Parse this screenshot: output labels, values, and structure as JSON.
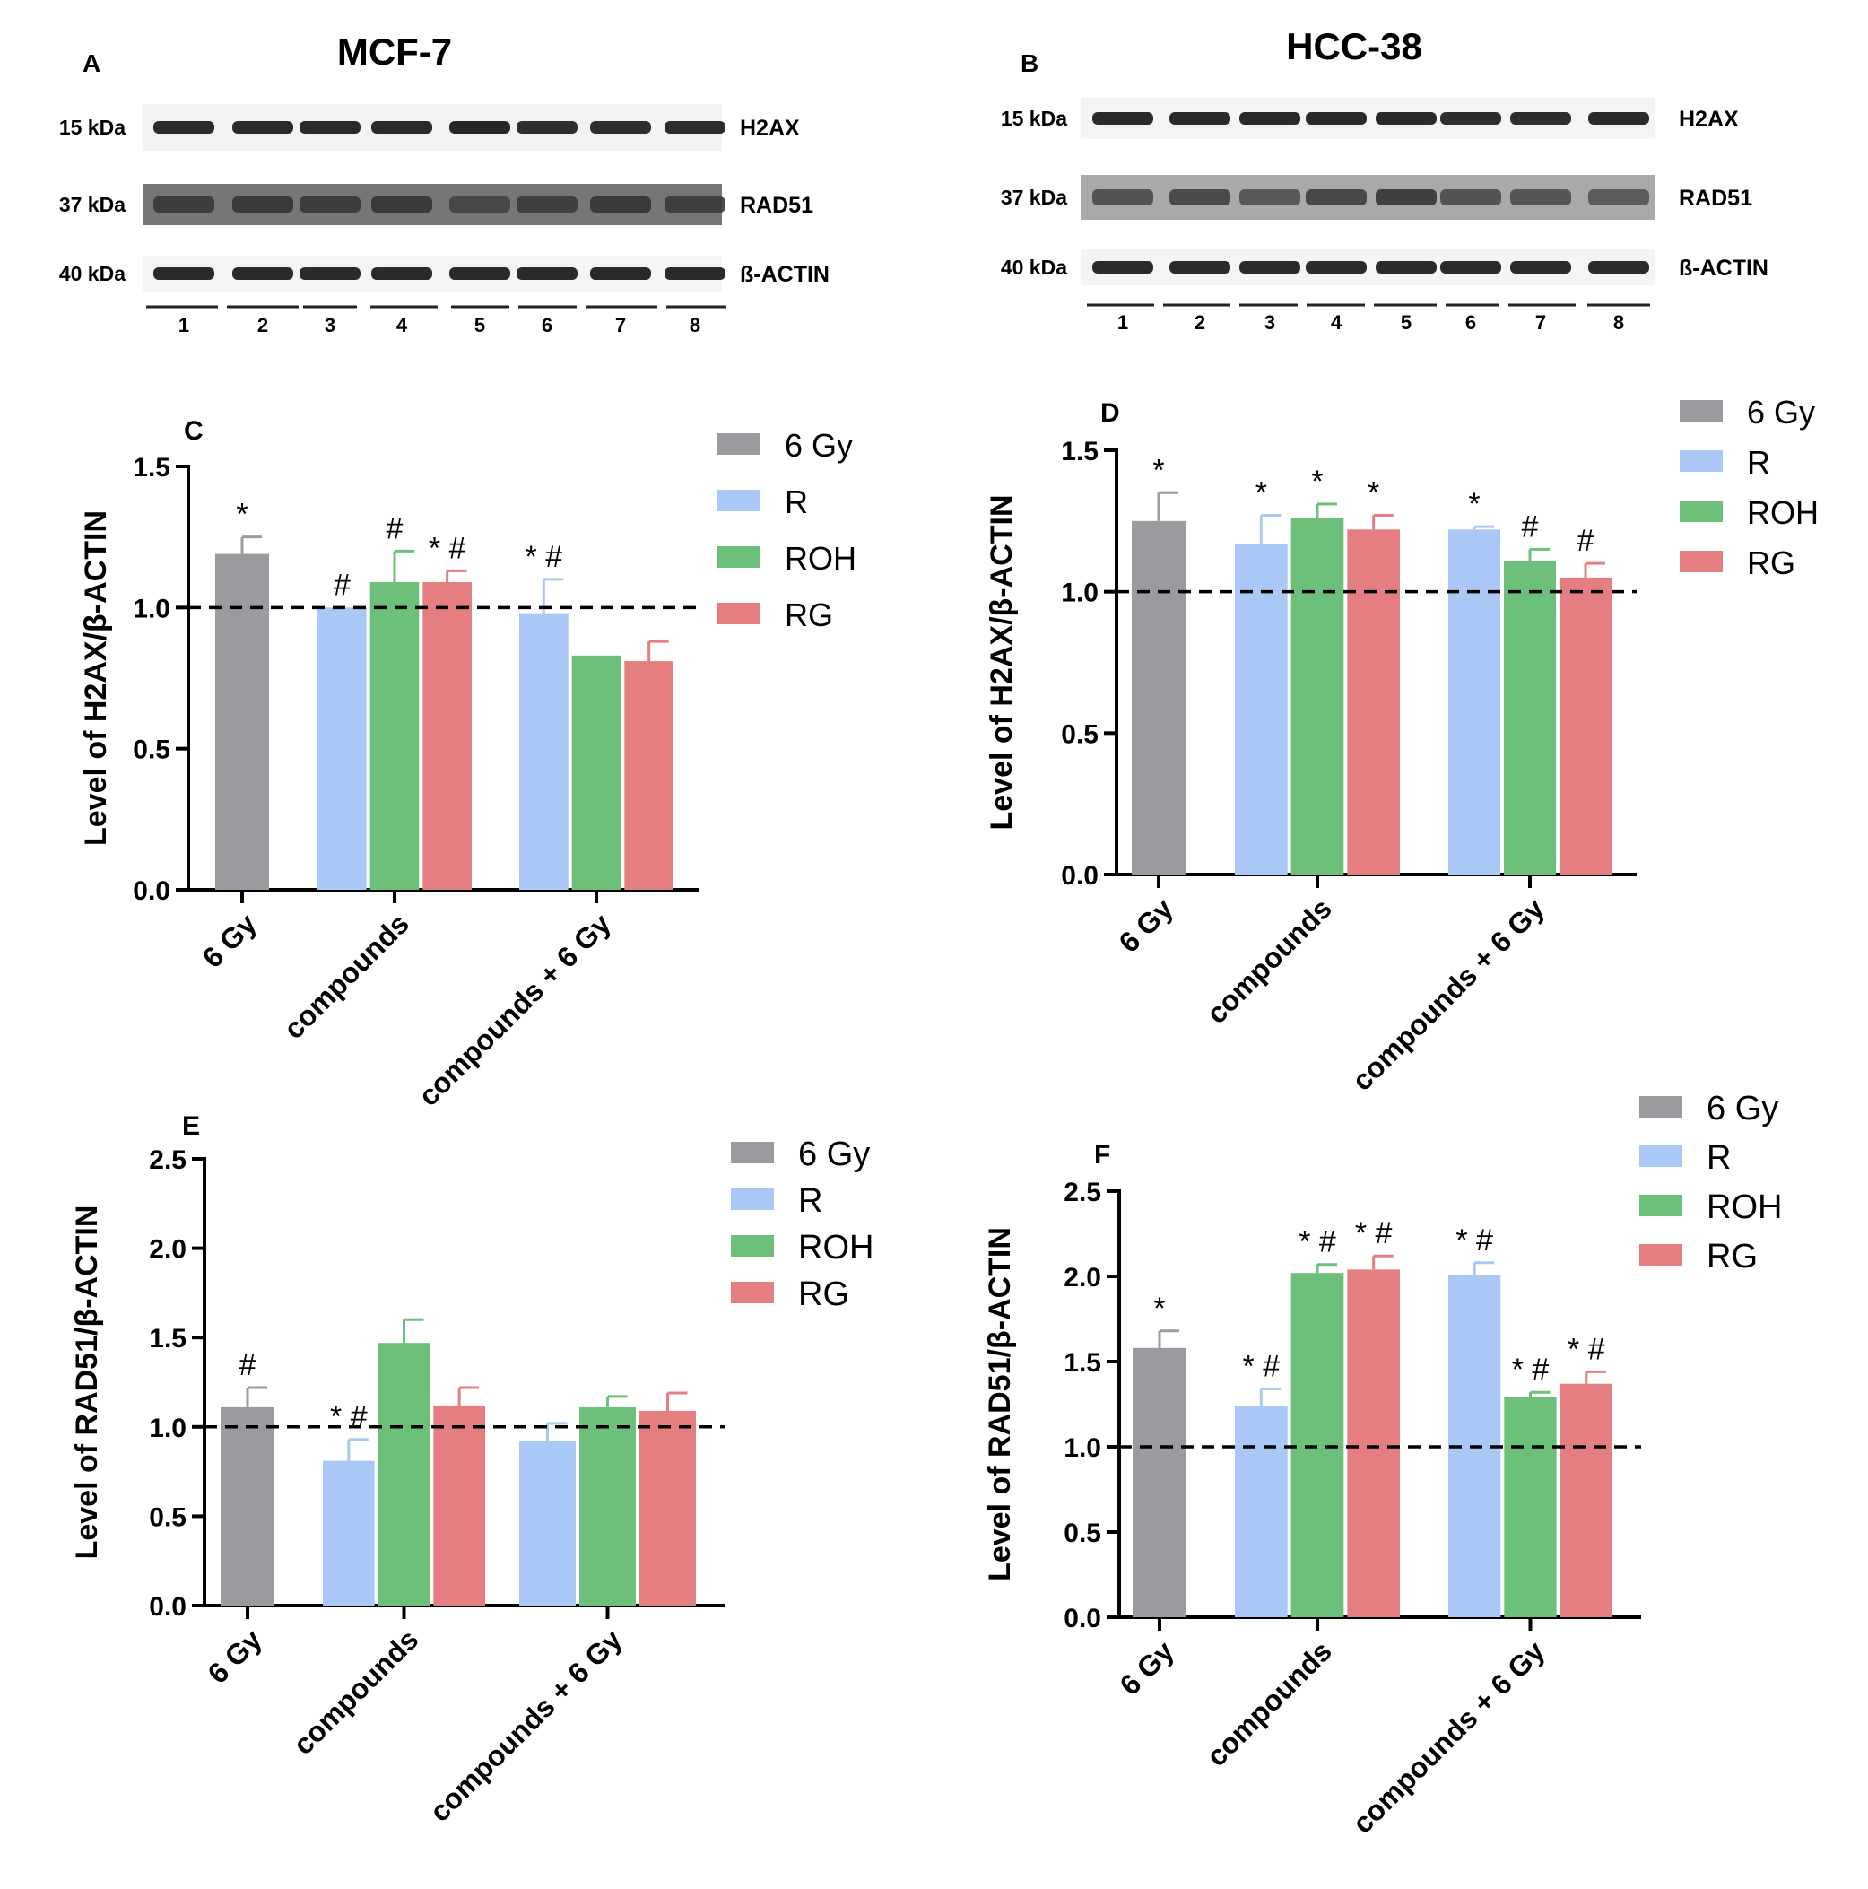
{
  "panels_labels": {
    "A": "A",
    "B": "B",
    "C": "C",
    "D": "D",
    "E": "E",
    "F": "F"
  },
  "blots": [
    {
      "letter": "A",
      "title": "MCF-7",
      "rows": [
        {
          "kda": "15 kDa",
          "protein": "H2AX"
        },
        {
          "kda": "37 kDa",
          "protein": "RAD51"
        },
        {
          "kda": "40 kDa",
          "protein": "ß-ACTIN"
        }
      ],
      "lanes": [
        "1",
        "2",
        "3",
        "4",
        "5",
        "6",
        "7",
        "8"
      ]
    },
    {
      "letter": "B",
      "title": "HCC-38",
      "rows": [
        {
          "kda": "15 kDa",
          "protein": "H2AX"
        },
        {
          "kda": "37 kDa",
          "protein": "RAD51"
        },
        {
          "kda": "40 kDa",
          "protein": "ß-ACTIN"
        }
      ],
      "lanes": [
        "1",
        "2",
        "3",
        "4",
        "5",
        "6",
        "7",
        "8"
      ]
    }
  ],
  "series_colors": {
    "6 Gy": "#9b9b9f",
    "R": "#a9c8f5",
    "ROH": "#6cc07a",
    "RG": "#e57e80"
  },
  "chart_data": [
    {
      "panel": "C",
      "type": "bar",
      "ylabel": "Level of H2AX/β-ACTIN",
      "ylim": [
        0,
        1.5
      ],
      "yticks": [
        "0.0",
        "0.5",
        "1.0",
        "1.5"
      ],
      "reference_line": 1.0,
      "categories": [
        "6 Gy",
        "compounds",
        "compounds + 6 Gy"
      ],
      "legend": [
        "6 Gy",
        "R",
        "ROH",
        "RG"
      ],
      "bars": [
        {
          "category": 0,
          "series": "6 Gy",
          "value": 1.19,
          "err": 0.06,
          "mark": "*"
        },
        {
          "category": 1,
          "series": "R",
          "value": 1.0,
          "err": 0.0,
          "mark": "#"
        },
        {
          "category": 1,
          "series": "ROH",
          "value": 1.09,
          "err": 0.11,
          "mark": "#"
        },
        {
          "category": 1,
          "series": "RG",
          "value": 1.09,
          "err": 0.04,
          "mark": "* #"
        },
        {
          "category": 2,
          "series": "R",
          "value": 0.98,
          "err": 0.12,
          "mark": "* #"
        },
        {
          "category": 2,
          "series": "ROH",
          "value": 0.83,
          "err": 0.0,
          "mark": ""
        },
        {
          "category": 2,
          "series": "RG",
          "value": 0.81,
          "err": 0.07,
          "mark": ""
        }
      ]
    },
    {
      "panel": "D",
      "type": "bar",
      "ylabel": "Level of H2AX/β-ACTIN",
      "ylim": [
        0,
        1.5
      ],
      "yticks": [
        "0.0",
        "0.5",
        "1.0",
        "1.5"
      ],
      "reference_line": 1.0,
      "categories": [
        "6 Gy",
        "compounds",
        "compounds + 6 Gy"
      ],
      "legend": [
        "6 Gy",
        "R",
        "ROH",
        "RG"
      ],
      "bars": [
        {
          "category": 0,
          "series": "6 Gy",
          "value": 1.25,
          "err": 0.1,
          "mark": "*"
        },
        {
          "category": 1,
          "series": "R",
          "value": 1.17,
          "err": 0.1,
          "mark": "*"
        },
        {
          "category": 1,
          "series": "ROH",
          "value": 1.26,
          "err": 0.05,
          "mark": "*"
        },
        {
          "category": 1,
          "series": "RG",
          "value": 1.22,
          "err": 0.05,
          "mark": "*"
        },
        {
          "category": 2,
          "series": "R",
          "value": 1.22,
          "err": 0.01,
          "mark": "*"
        },
        {
          "category": 2,
          "series": "ROH",
          "value": 1.11,
          "err": 0.04,
          "mark": "#"
        },
        {
          "category": 2,
          "series": "RG",
          "value": 1.05,
          "err": 0.05,
          "mark": "#"
        }
      ]
    },
    {
      "panel": "E",
      "type": "bar",
      "ylabel": "Level of RAD51/β-ACTIN",
      "ylim": [
        0,
        2.5
      ],
      "yticks": [
        "0.0",
        "0.5",
        "1.0",
        "1.5",
        "2.0",
        "2.5"
      ],
      "reference_line": 1.0,
      "categories": [
        "6 Gy",
        "compounds",
        "compounds + 6 Gy"
      ],
      "legend": [
        "6 Gy",
        "R",
        "ROH",
        "RG"
      ],
      "bars": [
        {
          "category": 0,
          "series": "6 Gy",
          "value": 1.11,
          "err": 0.11,
          "mark": "#"
        },
        {
          "category": 1,
          "series": "R",
          "value": 0.81,
          "err": 0.12,
          "mark": "* #"
        },
        {
          "category": 1,
          "series": "ROH",
          "value": 1.47,
          "err": 0.13,
          "mark": ""
        },
        {
          "category": 1,
          "series": "RG",
          "value": 1.12,
          "err": 0.1,
          "mark": ""
        },
        {
          "category": 2,
          "series": "R",
          "value": 0.92,
          "err": 0.1,
          "mark": ""
        },
        {
          "category": 2,
          "series": "ROH",
          "value": 1.11,
          "err": 0.06,
          "mark": ""
        },
        {
          "category": 2,
          "series": "RG",
          "value": 1.09,
          "err": 0.1,
          "mark": ""
        }
      ]
    },
    {
      "panel": "F",
      "type": "bar",
      "ylabel": "Level of RAD51/β-ACTIN",
      "ylim": [
        0,
        2.5
      ],
      "yticks": [
        "0.0",
        "0.5",
        "1.0",
        "1.5",
        "2.0",
        "2.5"
      ],
      "reference_line": 1.0,
      "categories": [
        "6 Gy",
        "compounds",
        "compounds + 6 Gy"
      ],
      "legend": [
        "6 Gy",
        "R",
        "ROH",
        "RG"
      ],
      "bars": [
        {
          "category": 0,
          "series": "6 Gy",
          "value": 1.58,
          "err": 0.1,
          "mark": "*"
        },
        {
          "category": 1,
          "series": "R",
          "value": 1.24,
          "err": 0.1,
          "mark": "* #"
        },
        {
          "category": 1,
          "series": "ROH",
          "value": 2.02,
          "err": 0.05,
          "mark": "* #"
        },
        {
          "category": 1,
          "series": "RG",
          "value": 2.04,
          "err": 0.08,
          "mark": "* #"
        },
        {
          "category": 2,
          "series": "R",
          "value": 2.01,
          "err": 0.07,
          "mark": "* #"
        },
        {
          "category": 2,
          "series": "ROH",
          "value": 1.29,
          "err": 0.03,
          "mark": "* #"
        },
        {
          "category": 2,
          "series": "RG",
          "value": 1.37,
          "err": 0.07,
          "mark": "* #"
        }
      ]
    }
  ]
}
